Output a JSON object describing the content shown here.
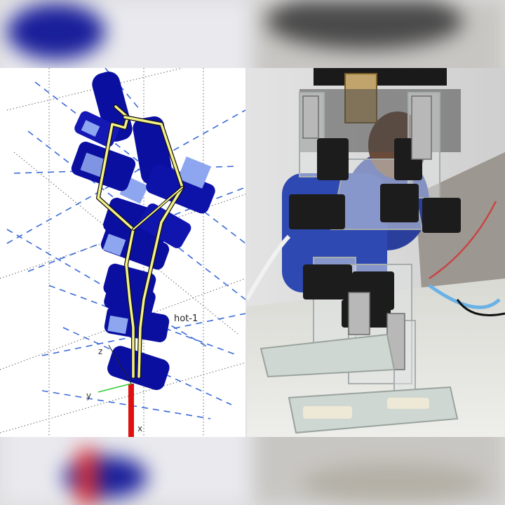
{
  "simulation": {
    "frame_label": "hot-1",
    "axis_labels": {
      "z": "z",
      "y": "y",
      "x": "x"
    }
  },
  "colors": {
    "link_blue": "#0a0fa0",
    "highlight": "#8da6ef",
    "leg_yellow": "#f4f08a",
    "axis_red": "#e01010",
    "axis_green": "#33cc33",
    "grid_dash": "#3a6ad8"
  }
}
